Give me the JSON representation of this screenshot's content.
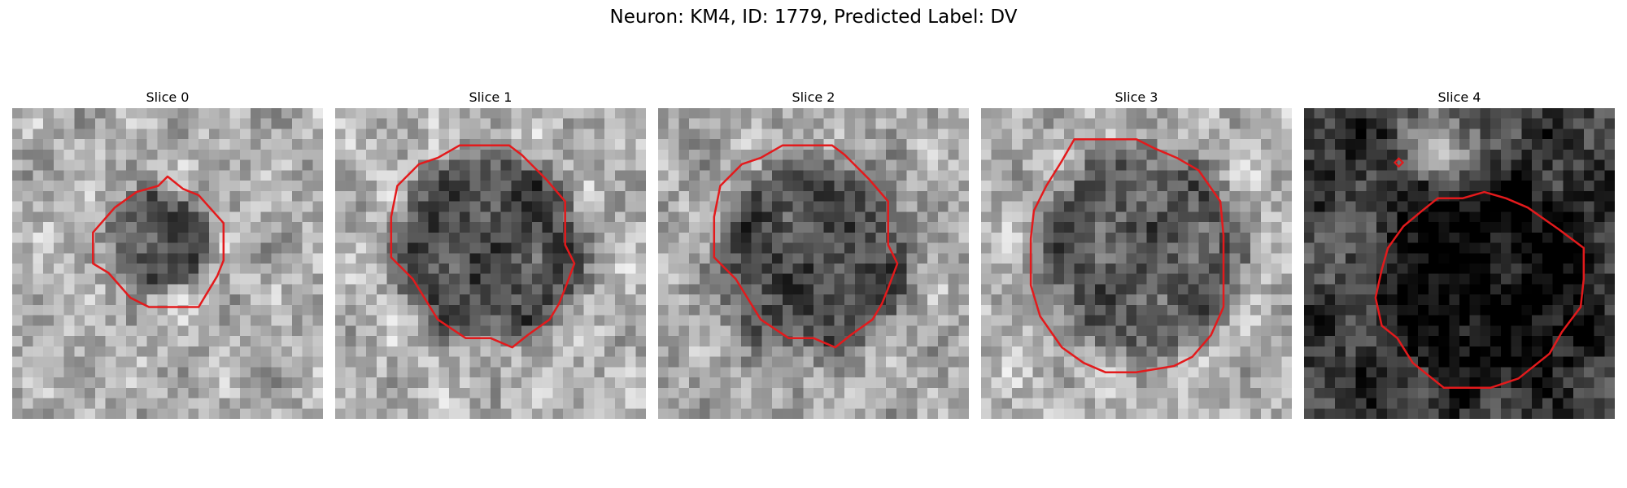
{
  "figure": {
    "title": "Neuron: KM4, ID: 1779, Predicted Label: DV"
  },
  "panels": [
    {
      "title": "Slice 0",
      "image": {
        "grid_size": 30,
        "background_level": 0.68,
        "cell_level": 0.32,
        "cell_center_fraction": [
          0.48,
          0.42
        ],
        "cell_radius_fraction": 0.16,
        "seed": 11
      },
      "contour_color": "#e31a1c",
      "contour_shape": "octagon-small"
    },
    {
      "title": "Slice 1",
      "image": {
        "grid_size": 30,
        "background_level": 0.7,
        "cell_level": 0.3,
        "cell_center_fraction": [
          0.5,
          0.45
        ],
        "cell_radius_fraction": 0.3,
        "seed": 23
      },
      "contour_color": "#e31a1c",
      "contour_shape": "octagon-large"
    },
    {
      "title": "Slice 2",
      "image": {
        "grid_size": 30,
        "background_level": 0.66,
        "cell_level": 0.3,
        "cell_center_fraction": [
          0.5,
          0.48
        ],
        "cell_radius_fraction": 0.31,
        "seed": 37
      },
      "contour_color": "#e31a1c",
      "contour_shape": "octagon-large"
    },
    {
      "title": "Slice 3",
      "image": {
        "grid_size": 30,
        "background_level": 0.7,
        "cell_level": 0.36,
        "cell_center_fraction": [
          0.51,
          0.46
        ],
        "cell_radius_fraction": 0.33,
        "seed": 53
      },
      "contour_color": "#e31a1c",
      "contour_shape": "octagon-tall"
    },
    {
      "title": "Slice 4",
      "image": {
        "grid_size": 30,
        "background_level": 0.22,
        "cell_level": 0.02,
        "cell_center_fraction": [
          0.6,
          0.55
        ],
        "cell_radius_fraction": 0.33,
        "seed": 71,
        "bright_patch": true
      },
      "contour_color": "#e31a1c",
      "contour_shape": "octagon-offset",
      "extra_marker": true
    }
  ]
}
